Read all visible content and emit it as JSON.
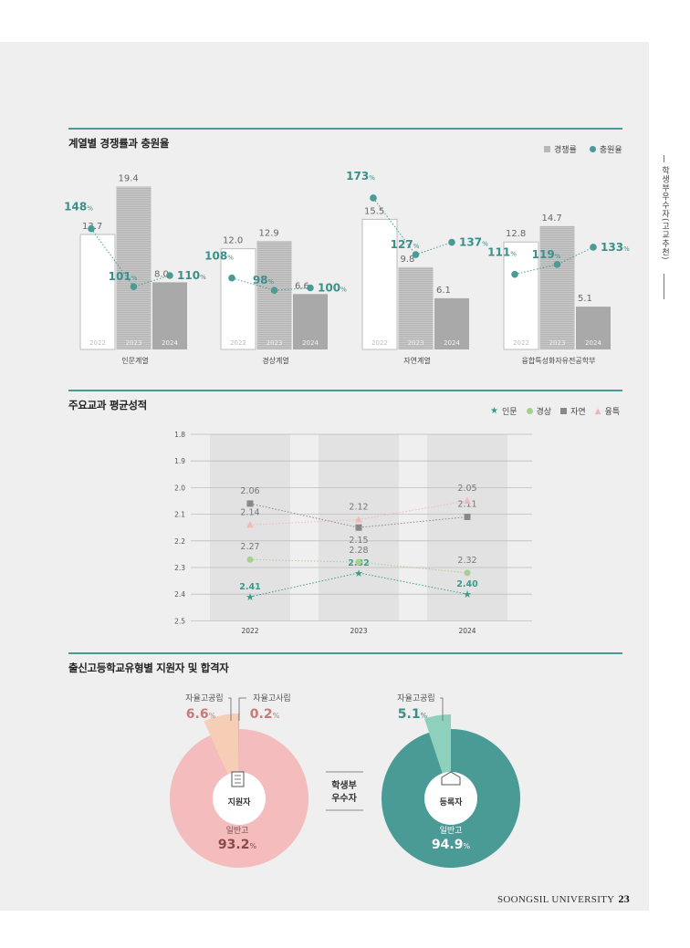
{
  "side_label": "학생부우수자(고교추천)",
  "footer": {
    "university": "SOONGSIL UNIVERSITY",
    "page": "23"
  },
  "section1": {
    "title": "계열별 경쟁률과 충원율",
    "legend": {
      "bar": "경쟁률",
      "line": "충원율"
    }
  },
  "section2": {
    "title": "주요교과 평균성적",
    "legend": [
      "인문",
      "경상",
      "자연",
      "융특"
    ]
  },
  "section3": {
    "title": "출신고등학교유형별 지원자 및 합격자",
    "center": "학생부\n우수자",
    "center_line1": "학생부",
    "center_line2": "우수자",
    "applicants": {
      "label": "지원자",
      "main_label": "일반고",
      "main_value": "93.2",
      "main_unit": "%",
      "pub_label": "자율고공립",
      "pub_value": "6.6",
      "pub_unit": "%",
      "priv_label": "자율고사립",
      "priv_value": "0.2",
      "priv_unit": "%"
    },
    "registrants": {
      "label": "등록자",
      "main_label": "일반고",
      "main_value": "94.9",
      "main_unit": "%",
      "pub_label": "자율고공립",
      "pub_value": "5.1",
      "pub_unit": "%"
    }
  },
  "colors": {
    "accent": "#4a9a95",
    "bar2023": "#bdbdbd",
    "bar2024": "#a8a8a8",
    "pink": "#f4bcbc",
    "peach": "#f6cdb5",
    "teal": "#4a9a95",
    "mint": "#8fd0bd"
  },
  "chart_data": [
    {
      "type": "bar",
      "title": "계열별 경쟁률과 충원율",
      "years": [
        "2022",
        "2023",
        "2024"
      ],
      "groups": [
        {
          "name": "인문계열",
          "competition": [
            13.7,
            19.4,
            8.0
          ],
          "competition_labels": [
            "13.7",
            "19.4",
            "8.0"
          ],
          "fill_rate": [
            148,
            101,
            110
          ]
        },
        {
          "name": "경상계열",
          "competition": [
            12.0,
            12.9,
            6.6
          ],
          "competition_labels": [
            "12.0",
            "12.9",
            "6.6"
          ],
          "fill_rate": [
            108,
            98,
            100
          ]
        },
        {
          "name": "자연계열",
          "competition": [
            15.5,
            9.8,
            6.1
          ],
          "competition_labels": [
            "15.5",
            "9.8",
            "6.1"
          ],
          "fill_rate": [
            173,
            127,
            137
          ]
        },
        {
          "name": "융합특성화자유전공학부",
          "competition": [
            12.8,
            14.7,
            5.1
          ],
          "competition_labels": [
            "12.8",
            "14.7",
            "5.1"
          ],
          "fill_rate": [
            111,
            119,
            133
          ]
        }
      ],
      "series": [
        {
          "name": "경쟁률"
        },
        {
          "name": "충원율",
          "unit": "%"
        }
      ]
    },
    {
      "type": "line",
      "title": "주요교과 평균성적",
      "x": [
        "2022",
        "2023",
        "2024"
      ],
      "y_ticks": [
        "1.8",
        "1.9",
        "2.0",
        "2.1",
        "2.2",
        "2.3",
        "2.4",
        "2.5"
      ],
      "ylim": [
        1.8,
        2.5
      ],
      "y_inverted": true,
      "series": [
        {
          "name": "인문",
          "values": [
            2.41,
            2.32,
            2.4
          ],
          "labels": [
            "2.41",
            "2.32",
            "2.40"
          ],
          "color": "#3a9a8a"
        },
        {
          "name": "경상",
          "values": [
            2.27,
            2.28,
            2.32
          ],
          "labels": [
            "2.27",
            "2.28",
            "2.32"
          ],
          "color": "#a8d08d"
        },
        {
          "name": "자연",
          "values": [
            2.06,
            2.15,
            2.11
          ],
          "labels": [
            "2.06",
            "2.15",
            "2.11"
          ],
          "color": "#888888"
        },
        {
          "name": "융특",
          "values": [
            2.14,
            2.12,
            2.05
          ],
          "labels": [
            "2.14",
            "2.12",
            "2.05"
          ],
          "color": "#f2b8b8"
        }
      ]
    },
    {
      "type": "pie",
      "title": "지원자",
      "slices": [
        {
          "name": "일반고",
          "value": 93.2
        },
        {
          "name": "자율고공립",
          "value": 6.6
        },
        {
          "name": "자율고사립",
          "value": 0.2
        }
      ]
    },
    {
      "type": "pie",
      "title": "등록자",
      "slices": [
        {
          "name": "일반고",
          "value": 94.9
        },
        {
          "name": "자율고공립",
          "value": 5.1
        }
      ]
    }
  ]
}
